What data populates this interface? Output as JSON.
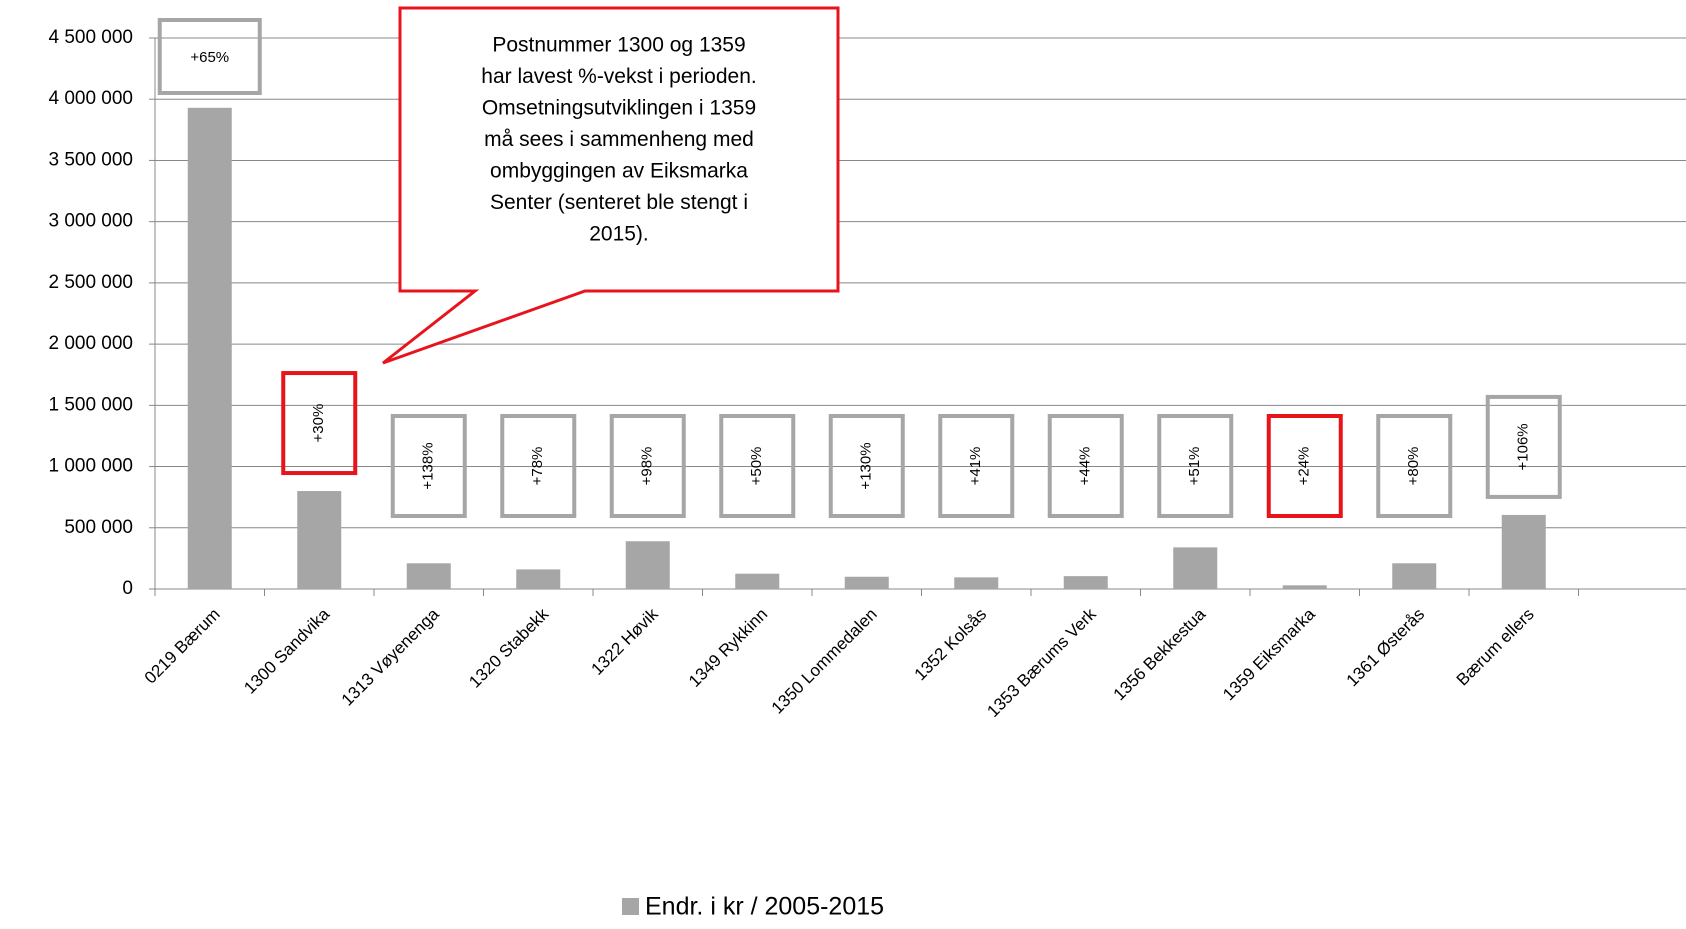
{
  "chart_data": {
    "type": "bar",
    "categories": [
      "0219 Bærum",
      "1300 Sandvika",
      "1313 Vøyenenga",
      "1320 Stabekk",
      "1322 Høvik",
      "1349 Rykkinn",
      "1350 Lommedalen",
      "1352 Kolsås",
      "1353 Bærums Verk",
      "1356 Bekkestua",
      "1359 Eiksmarka",
      "1361 Østerås",
      "Bærum ellers"
    ],
    "series": [
      {
        "name": "Endr. i kr / 2005-2015",
        "color": "#a6a6a6",
        "values": [
          3930000,
          800000,
          210000,
          160000,
          390000,
          125000,
          100000,
          95000,
          105000,
          340000,
          30000,
          210000,
          605000
        ]
      }
    ],
    "growth_labels": [
      "+65%",
      "+30%",
      "+138%",
      "+78%",
      "+98%",
      "+50%",
      "+130%",
      "+41%",
      "+44%",
      "+51%",
      "+24%",
      "+80%",
      "+106%"
    ],
    "growth_label_colors": [
      "#a6a6a6",
      "#e8141b",
      "#a6a6a6",
      "#a6a6a6",
      "#a6a6a6",
      "#a6a6a6",
      "#a6a6a6",
      "#a6a6a6",
      "#a6a6a6",
      "#a6a6a6",
      "#e8141b",
      "#a6a6a6",
      "#a6a6a6"
    ],
    "callout": [
      "Postnummer 1300 og 1359",
      "har lavest %-vekst i perioden.",
      "Omsetningsutviklingen i 1359",
      "må sees i sammenheng med",
      "ombyggingen av Eiksmarka",
      "Senter (senteret ble stengt i",
      "2015)."
    ],
    "callout_color": "#e8141b",
    "ylim": [
      0,
      4500000
    ],
    "yticks": [
      0,
      {
        "value": 500000,
        "label": "500 000"
      },
      {
        "value": 1000000,
        "label": "1 000 000"
      },
      {
        "value": 1500000,
        "label": "1 500 000"
      },
      {
        "value": 2000000,
        "label": "2 000 000"
      },
      {
        "value": 2500000,
        "label": "2 500 000"
      },
      {
        "value": 3000000,
        "label": "3 000 000"
      },
      {
        "value": 3500000,
        "label": "3 500 000"
      },
      {
        "value": 4000000,
        "label": "4 000 000"
      },
      {
        "value": 4500000,
        "label": "4 500 000"
      }
    ],
    "grid": true,
    "legend": "bottom"
  }
}
